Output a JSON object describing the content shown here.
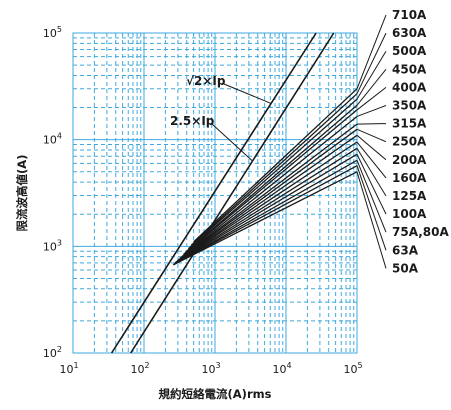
{
  "chart_data": {
    "type": "line",
    "x_scale": "log",
    "y_scale": "log",
    "xlim": [
      10,
      100000
    ],
    "ylim": [
      100,
      100000
    ],
    "x_tick_labels": [
      {
        "base": "10",
        "exp": "1"
      },
      {
        "base": "10",
        "exp": "2"
      },
      {
        "base": "10",
        "exp": "3"
      },
      {
        "base": "10",
        "exp": "4"
      },
      {
        "base": "10",
        "exp": "5"
      }
    ],
    "y_tick_labels": [
      {
        "base": "10",
        "exp": "2"
      },
      {
        "base": "10",
        "exp": "3"
      },
      {
        "base": "10",
        "exp": "4"
      },
      {
        "base": "10",
        "exp": "5"
      }
    ],
    "xlabel": "規約短絡電流(A)rms",
    "ylabel": "限流波高値(A)",
    "grid": true,
    "grid_color": "#3fa9e0",
    "line_color": "#1a1a1a",
    "reference_lines": [
      {
        "label": "√2×Ip",
        "points": [
          [
            35,
            100
          ],
          [
            26500,
            100000
          ]
        ]
      },
      {
        "label": "2.5×Ip",
        "points": [
          [
            65,
            100
          ],
          [
            47000,
            100000
          ]
        ]
      }
    ],
    "series": [
      {
        "name": "710A",
        "points": [
          [
            500,
            1100
          ],
          [
            100000,
            30000
          ]
        ]
      },
      {
        "name": "630A",
        "points": [
          [
            460,
            1020
          ],
          [
            100000,
            27000
          ]
        ]
      },
      {
        "name": "500A",
        "points": [
          [
            420,
            950
          ],
          [
            100000,
            24000
          ]
        ]
      },
      {
        "name": "450A",
        "points": [
          [
            390,
            890
          ],
          [
            100000,
            21000
          ]
        ]
      },
      {
        "name": "400A",
        "points": [
          [
            360,
            840
          ],
          [
            100000,
            19000
          ]
        ]
      },
      {
        "name": "350A",
        "points": [
          [
            340,
            800
          ],
          [
            100000,
            16500
          ]
        ]
      },
      {
        "name": "315A",
        "points": [
          [
            320,
            770
          ],
          [
            100000,
            14000
          ]
        ]
      },
      {
        "name": "250A",
        "points": [
          [
            300,
            740
          ],
          [
            100000,
            12500
          ]
        ]
      },
      {
        "name": "200A",
        "points": [
          [
            290,
            720
          ],
          [
            100000,
            11000
          ]
        ]
      },
      {
        "name": "160A",
        "points": [
          [
            280,
            710
          ],
          [
            100000,
            9500
          ]
        ]
      },
      {
        "name": "125A",
        "points": [
          [
            275,
            700
          ],
          [
            100000,
            8300
          ]
        ]
      },
      {
        "name": "100A",
        "points": [
          [
            270,
            690
          ],
          [
            100000,
            7300
          ]
        ]
      },
      {
        "name": "75A,80A",
        "points": [
          [
            265,
            680
          ],
          [
            100000,
            6400
          ]
        ]
      },
      {
        "name": "63A",
        "points": [
          [
            262,
            675
          ],
          [
            100000,
            5700
          ]
        ]
      },
      {
        "name": "50A",
        "points": [
          [
            258,
            670
          ],
          [
            100000,
            5000
          ]
        ]
      }
    ],
    "annotations": [
      {
        "text": "√2×Ip"
      },
      {
        "text": "2.5×Ip"
      }
    ]
  }
}
